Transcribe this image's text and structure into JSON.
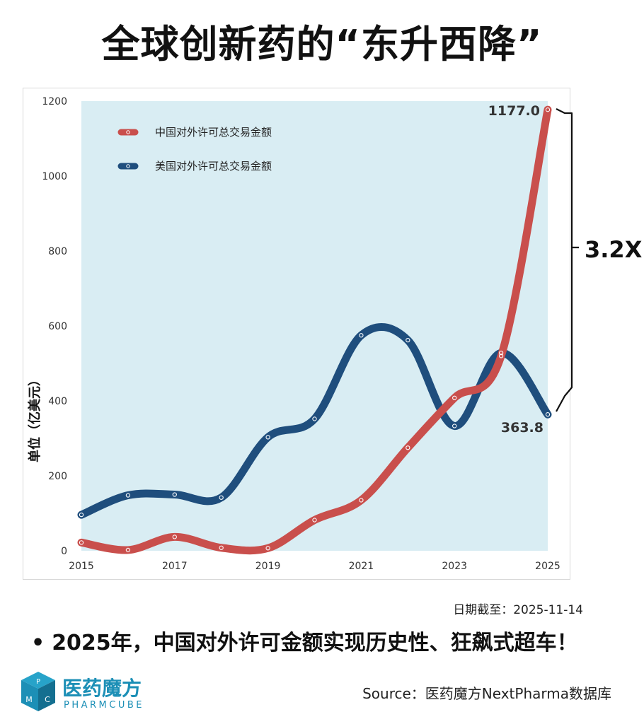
{
  "title": "全球创新药的“东升西降”",
  "headline": "2025年，中国对外许可金额实现历史性、狂飙式超车！",
  "headline_bullet": "•",
  "cutoff_date": "日期截至：2025-11-14",
  "source": "Source：医药魔方NextPharma数据库",
  "logo": {
    "cn": "医药魔方",
    "en": "PHARMCUBE",
    "letters": [
      "P",
      "M",
      "C"
    ]
  },
  "colors": {
    "china": "#c94f4c",
    "usa": "#1f4e7d",
    "plot_bg": "#d9edf3",
    "brand": "#1c8fb6"
  },
  "chart_data": {
    "type": "line",
    "x": [
      2015,
      2016,
      2017,
      2018,
      2019,
      2020,
      2021,
      2022,
      2023,
      2024,
      2025
    ],
    "x_tick_labels": [
      "2015",
      "2017",
      "2019",
      "2021",
      "2023",
      "2025"
    ],
    "y_tick_labels": [
      "0",
      "200",
      "400",
      "600",
      "800",
      "1000",
      "1200"
    ],
    "ylabel": "单位（亿美元）",
    "xlim": [
      2015,
      2025
    ],
    "ylim": [
      0,
      1200
    ],
    "grid": false,
    "legend_position": "top-left",
    "series": [
      {
        "name": "中国对外许可总交易金额",
        "color": "#c94f4c",
        "values": [
          22,
          2,
          37,
          8,
          7,
          82,
          135,
          275,
          408,
          520,
          1177.0
        ]
      },
      {
        "name": "美国对外许可总交易金额",
        "color": "#1f4e7d",
        "values": [
          96,
          148,
          150,
          142,
          303,
          352,
          575,
          562,
          333,
          528,
          363.8
        ]
      }
    ],
    "annotations": {
      "china_end_value": "1177.0",
      "usa_end_value": "363.8",
      "ratio": "3.2X"
    }
  }
}
